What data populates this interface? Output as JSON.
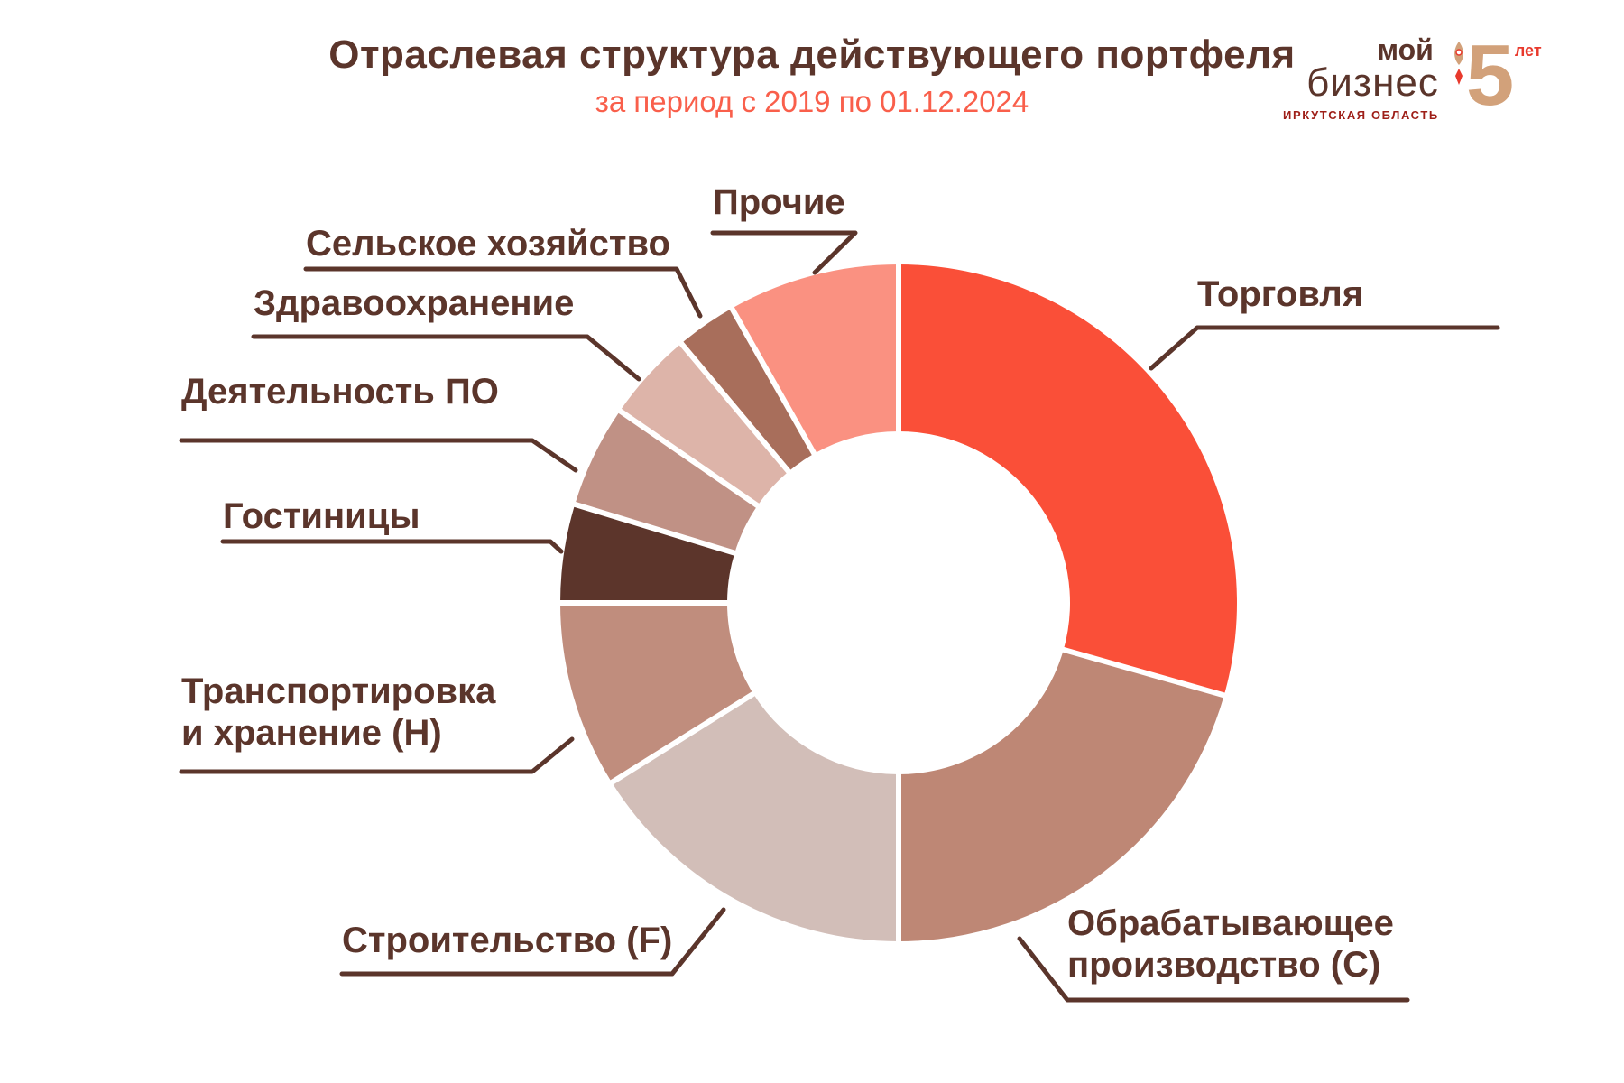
{
  "header": {
    "title": "Отраслевая структура действующего портфеля",
    "subtitle": "за период с 2019 по 01.12.2024"
  },
  "logo": {
    "brand_line1": "мой",
    "brand_line2": "бизнес",
    "region": "ИРКУТСКАЯ ОБЛАСТЬ",
    "anniversary_number": "5",
    "anniversary_caption": "лет"
  },
  "colors": {
    "background": "#FFFFFF",
    "text_brown": "#5B352B",
    "subtitle_coral": "#F95F4B",
    "pointer_line": "#5B352B",
    "separator": "#FFFFFF",
    "logo_red": "#9E1F18",
    "logo_tan": "#D2A17A",
    "logo_bright_red": "#E8392C"
  },
  "chart_data": {
    "type": "pie",
    "subtype": "donut",
    "title": "Отраслевая структура действующего портфеля",
    "subtitle": "за период с 2019 по 01.12.2024",
    "start_angle_deg": 0,
    "direction": "clockwise",
    "inner_radius_ratio": 0.51,
    "data_labels_shown": false,
    "segments": [
      {
        "label": "Торговля",
        "percent": 29.4,
        "color": "#FA4F38"
      },
      {
        "label": "Обрабатывающее\nпроизводство (C)",
        "percent": 20.6,
        "color": "#BE8775"
      },
      {
        "label": "Строительство (F)",
        "percent": 16.1,
        "color": "#D2BEB8"
      },
      {
        "label": "Транспортировка\nи хранение (Н)",
        "percent": 8.9,
        "color": "#C08D7D"
      },
      {
        "label": "Гостиницы",
        "percent": 4.7,
        "color": "#5C352B"
      },
      {
        "label": "Деятельность ПО",
        "percent": 4.9,
        "color": "#C09185"
      },
      {
        "label": "Здравоохранение",
        "percent": 4.3,
        "color": "#DDB4A9"
      },
      {
        "label": "Сельское хозяйство",
        "percent": 2.9,
        "color": "#A86E5B"
      },
      {
        "label": "Прочие",
        "percent": 8.2,
        "color": "#FA9181"
      }
    ]
  }
}
